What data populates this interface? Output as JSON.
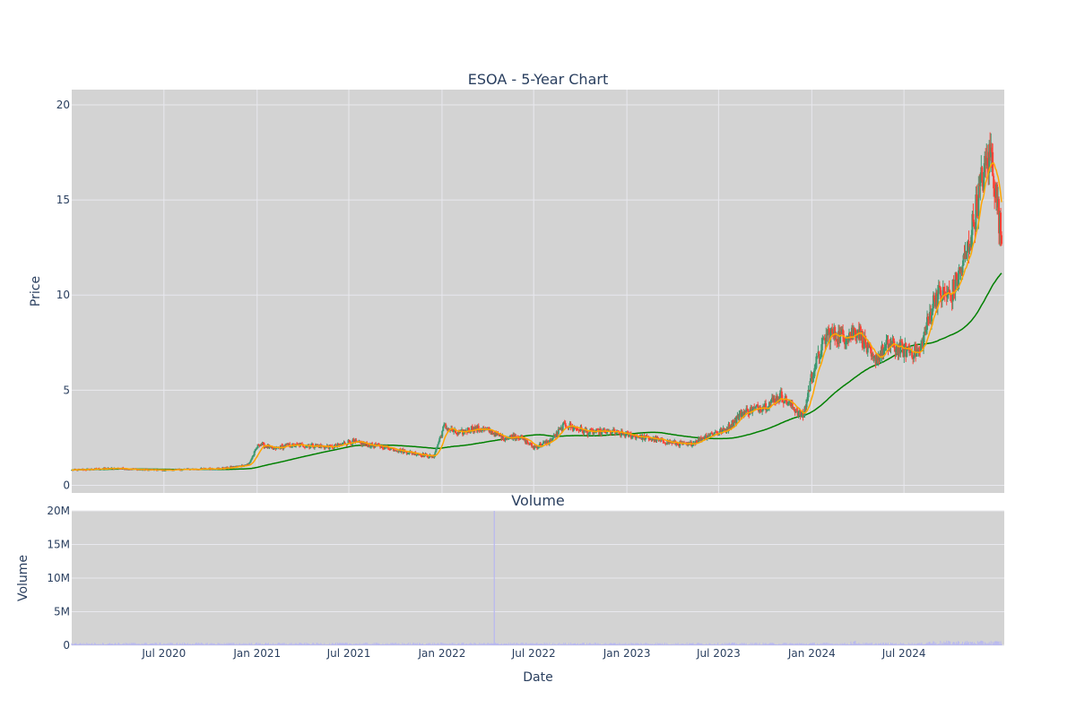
{
  "chart_data": [
    {
      "type": "candlestick",
      "title": "ESOA - 5-Year Chart",
      "xlabel": "",
      "ylabel": "Price",
      "ylim": [
        -0.4,
        20.8
      ],
      "y_ticks": [
        0,
        5,
        10,
        15,
        20
      ],
      "grid": true,
      "x_ticks": [
        "2020-07-01",
        "2021-01-01",
        "2021-07-01",
        "2022-01-01",
        "2022-07-01",
        "2023-01-01",
        "2023-07-01",
        "2024-01-01",
        "2024-07-01"
      ],
      "x_range": [
        "2020-01-01",
        "2025-01-15"
      ],
      "increasing_color": "#3D9970",
      "decreasing_color": "#FF4136",
      "close_points": [
        [
          "2020-01-01",
          0.8
        ],
        [
          "2020-02-15",
          0.85
        ],
        [
          "2020-04-01",
          0.9
        ],
        [
          "2020-05-15",
          0.82
        ],
        [
          "2020-07-01",
          0.8
        ],
        [
          "2020-09-01",
          0.85
        ],
        [
          "2020-11-01",
          0.9
        ],
        [
          "2020-12-15",
          1.1
        ],
        [
          "2021-01-05",
          2.2
        ],
        [
          "2021-02-01",
          1.9
        ],
        [
          "2021-03-01",
          2.1
        ],
        [
          "2021-04-15",
          2.1
        ],
        [
          "2021-06-01",
          2.0
        ],
        [
          "2021-07-01",
          2.3
        ],
        [
          "2021-08-15",
          2.1
        ],
        [
          "2021-09-15",
          2.0
        ],
        [
          "2021-10-15",
          1.8
        ],
        [
          "2021-12-15",
          1.5
        ],
        [
          "2022-01-05",
          3.1
        ],
        [
          "2022-02-01",
          2.7
        ],
        [
          "2022-03-01",
          3.0
        ],
        [
          "2022-04-01",
          2.9
        ],
        [
          "2022-05-01",
          2.5
        ],
        [
          "2022-06-01",
          2.6
        ],
        [
          "2022-07-01",
          2.0
        ],
        [
          "2022-08-01",
          2.3
        ],
        [
          "2022-09-01",
          3.2
        ],
        [
          "2022-10-15",
          2.8
        ],
        [
          "2022-12-01",
          2.8
        ],
        [
          "2023-01-15",
          2.6
        ],
        [
          "2023-03-01",
          2.4
        ],
        [
          "2023-05-01",
          2.1
        ],
        [
          "2023-06-15",
          2.7
        ],
        [
          "2023-07-15",
          2.9
        ],
        [
          "2023-08-15",
          3.8
        ],
        [
          "2023-10-01",
          4.2
        ],
        [
          "2023-11-01",
          4.7
        ],
        [
          "2023-12-15",
          3.6
        ],
        [
          "2024-01-01",
          5.8
        ],
        [
          "2024-02-01",
          8.0
        ],
        [
          "2024-03-01",
          7.8
        ],
        [
          "2024-04-01",
          8.2
        ],
        [
          "2024-05-01",
          6.5
        ],
        [
          "2024-06-01",
          7.4
        ],
        [
          "2024-07-01",
          7.1
        ],
        [
          "2024-08-01",
          7.0
        ],
        [
          "2024-09-01",
          10.0
        ],
        [
          "2024-10-01",
          10.0
        ],
        [
          "2024-11-01",
          12.0
        ],
        [
          "2024-12-01",
          16.0
        ],
        [
          "2024-12-20",
          17.5
        ],
        [
          "2025-01-10",
          12.8
        ]
      ],
      "annotations": [
        "Volume"
      ]
    },
    {
      "type": "bar",
      "title": "Volume",
      "xlabel": "Date",
      "ylabel": "Volume",
      "ylim": [
        0,
        20000000
      ],
      "y_ticks": [
        0,
        5000000,
        10000000,
        15000000,
        20000000
      ],
      "y_tick_labels": [
        "0",
        "5M",
        "10M",
        "15M",
        "20M"
      ],
      "x_tick_labels": [
        "Jul 2020",
        "Jan 2021",
        "Jul 2021",
        "Jan 2022",
        "Jul 2022",
        "Jan 2023",
        "Jul 2023",
        "Jan 2024",
        "Jul 2024"
      ],
      "bar_color": "#b8b8f0",
      "spike": [
        "2022-04-14",
        20000000
      ]
    }
  ],
  "colors": {
    "plot_bg": "#d3d3d3",
    "grid": "#e8e8ee",
    "text": "#2a3f5f",
    "ma_short": "#FFA500",
    "ma_long": "#008000"
  }
}
